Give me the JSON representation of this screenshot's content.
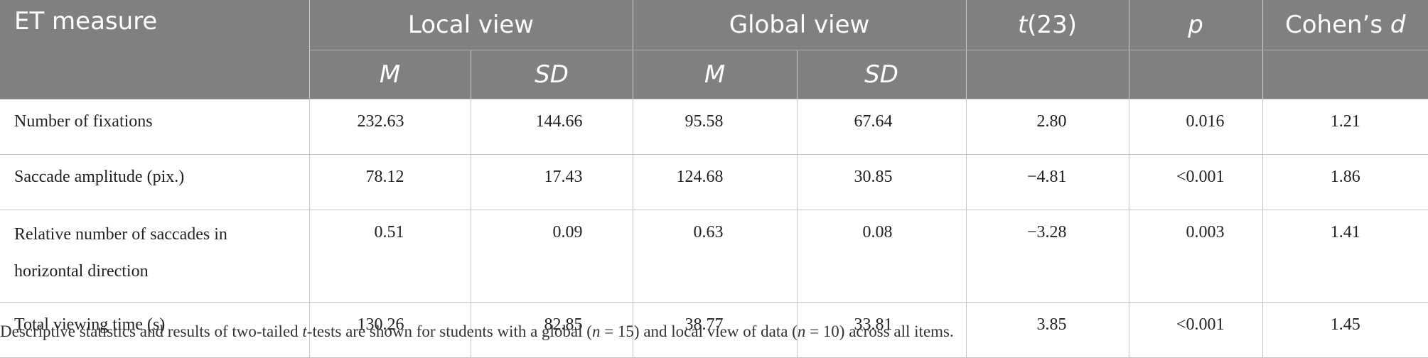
{
  "table": {
    "header": {
      "et_measure": "ET measure",
      "local_view": "Local view",
      "global_view": "Global view",
      "t_label_italic": "t",
      "t_label_rest": "(23)",
      "p": "p",
      "cohens_prefix": "Cohen’s ",
      "cohens_d": "d",
      "sub_m": "M",
      "sub_sd": "SD"
    },
    "rows": [
      {
        "measure": "Number of fixations",
        "local_m": "232.63",
        "local_sd": "144.66",
        "global_m": "95.58",
        "global_sd": "67.64",
        "t": "2.80",
        "p": "0.016",
        "d": "1.21"
      },
      {
        "measure": "Saccade amplitude (pix.)",
        "local_m": "78.12",
        "local_sd": "17.43",
        "global_m": "124.68",
        "global_sd": "30.85",
        "t": "−4.81",
        "p": "<0.001",
        "d": "1.86"
      },
      {
        "measure_line1": "Relative number of saccades in",
        "measure_line2": "horizontal direction",
        "local_m": "0.51",
        "local_sd": "0.09",
        "global_m": "0.63",
        "global_sd": "0.08",
        "t": "−3.28",
        "p": "0.003",
        "d": "1.41"
      },
      {
        "measure": "Total viewing time (s)",
        "local_m": "130.26",
        "local_sd": "82.85",
        "global_m": "38.77",
        "global_sd": "33.81",
        "t": "3.85",
        "p": "<0.001",
        "d": "1.45"
      }
    ]
  },
  "footnote": {
    "part1": "Descriptive statistics and results of two-tailed ",
    "t_italic": "t",
    "part2": "-tests are shown for students with a global (",
    "n_italic_1": "n",
    "part3": " = 15) and local view of data (",
    "n_italic_2": "n",
    "part4": " = 10) across all items."
  }
}
